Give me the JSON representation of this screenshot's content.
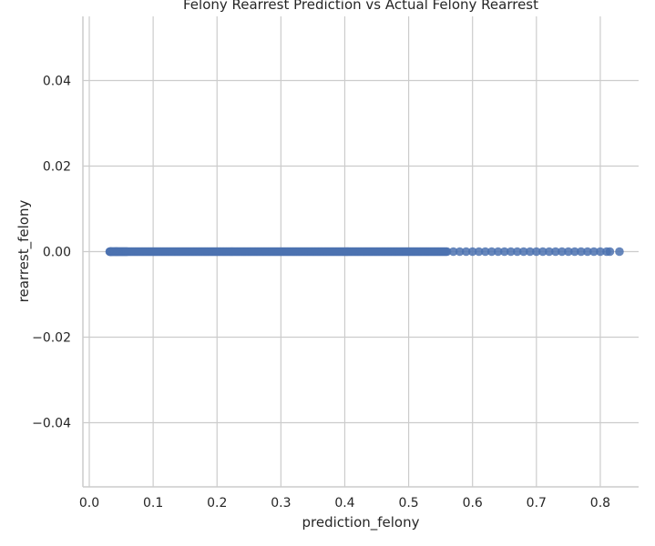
{
  "chart_data": {
    "type": "scatter",
    "title": "Felony Rearrest Prediction vs Actual Felony Rearrest",
    "xlabel": "prediction_felony",
    "ylabel": "rearrest_felony",
    "xlim": [
      -0.01,
      0.86
    ],
    "ylim": [
      -0.055,
      0.055
    ],
    "x_ticks": [
      0.0,
      0.1,
      0.2,
      0.3,
      0.4,
      0.5,
      0.6,
      0.7,
      0.8
    ],
    "x_tick_labels": [
      "0.0",
      "0.1",
      "0.2",
      "0.3",
      "0.4",
      "0.5",
      "0.6",
      "0.7",
      "0.8"
    ],
    "y_ticks": [
      0.04,
      0.02,
      0.0,
      -0.02,
      -0.04
    ],
    "y_tick_labels": [
      "0.04",
      "0.02",
      "0.00",
      "−0.02",
      "−0.04"
    ],
    "grid": true,
    "point_color": "#4c72b0",
    "series": [
      {
        "x": [
          0.032,
          0.035,
          0.04,
          0.045,
          0.05,
          0.055,
          0.06,
          0.07,
          0.08,
          0.09,
          0.1,
          0.11,
          0.12,
          0.13,
          0.14,
          0.15,
          0.16,
          0.17,
          0.18,
          0.19,
          0.2,
          0.21,
          0.22,
          0.23,
          0.24,
          0.25,
          0.26,
          0.27,
          0.28,
          0.29,
          0.3,
          0.31,
          0.32,
          0.33,
          0.34,
          0.35,
          0.36,
          0.37,
          0.38,
          0.39,
          0.4,
          0.41,
          0.42,
          0.43,
          0.44,
          0.45,
          0.46,
          0.47,
          0.48,
          0.49,
          0.5,
          0.51,
          0.52,
          0.53,
          0.54,
          0.55,
          0.56,
          0.57,
          0.58,
          0.59,
          0.6,
          0.61,
          0.62,
          0.63,
          0.64,
          0.65,
          0.66,
          0.67,
          0.68,
          0.69,
          0.7,
          0.71,
          0.72,
          0.73,
          0.74,
          0.75,
          0.76,
          0.77,
          0.78,
          0.79,
          0.8,
          0.81,
          0.815,
          0.83
        ],
        "y": [
          0,
          0,
          0,
          0,
          0,
          0,
          0,
          0,
          0,
          0,
          0,
          0,
          0,
          0,
          0,
          0,
          0,
          0,
          0,
          0,
          0,
          0,
          0,
          0,
          0,
          0,
          0,
          0,
          0,
          0,
          0,
          0,
          0,
          0,
          0,
          0,
          0,
          0,
          0,
          0,
          0,
          0,
          0,
          0,
          0,
          0,
          0,
          0,
          0,
          0,
          0,
          0,
          0,
          0,
          0,
          0,
          0,
          0,
          0,
          0,
          0,
          0,
          0,
          0,
          0,
          0,
          0,
          0,
          0,
          0,
          0,
          0,
          0,
          0,
          0,
          0,
          0,
          0,
          0,
          0,
          0,
          0,
          0,
          0
        ]
      }
    ]
  }
}
